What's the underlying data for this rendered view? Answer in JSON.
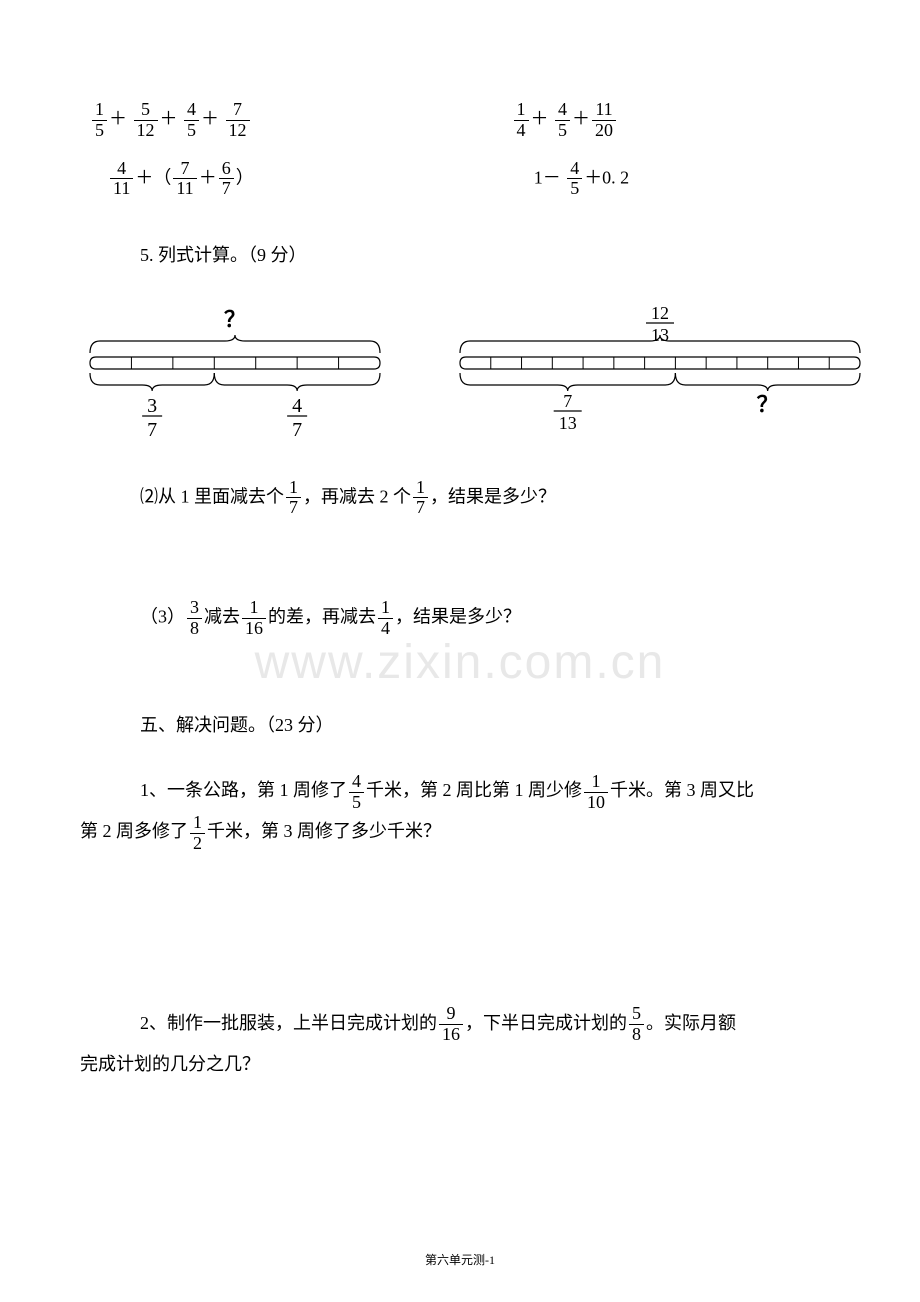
{
  "expr_row1_left": {
    "t1": {
      "n": "1",
      "d": "5"
    },
    "t2": {
      "n": "5",
      "d": "12"
    },
    "t3": {
      "n": "4",
      "d": "5"
    },
    "t4": {
      "n": "7",
      "d": "12"
    }
  },
  "expr_row1_right": {
    "t1": {
      "n": "1",
      "d": "4"
    },
    "t2": {
      "n": "4",
      "d": "5"
    },
    "t3": {
      "n": "11",
      "d": "20"
    }
  },
  "expr_row2_left": {
    "t1": {
      "n": "4",
      "d": "11"
    },
    "t2": {
      "n": "7",
      "d": "11"
    },
    "t3": {
      "n": "6",
      "d": "7"
    }
  },
  "expr_row2_right": {
    "lead": "1－ ",
    "f": {
      "n": "4",
      "d": "5"
    },
    "tail": "＋0. 2"
  },
  "q5": {
    "heading": "5. 列式计算。（9 分）",
    "diagram1": {
      "top_q": "？",
      "left": {
        "n": "3",
        "d": "7"
      },
      "right": {
        "n": "4",
        "d": "7"
      },
      "ticks_left": 3,
      "ticks_right": 4,
      "color": "#000000"
    },
    "diagram2": {
      "top_frac": {
        "n": "12",
        "d": "13"
      },
      "bottom_left": {
        "n": "7",
        "d": "13"
      },
      "bottom_q": "？",
      "cells": 13,
      "color": "#000000"
    }
  },
  "q2": {
    "pre": "⑵从 1 里面减去个",
    "f1": {
      "n": "1",
      "d": "7"
    },
    "mid": "，再减去 2 个",
    "f2": {
      "n": "1",
      "d": "7"
    },
    "post": "，结果是多少？"
  },
  "q3": {
    "pre": "（3）",
    "f1": {
      "n": "3",
      "d": "8"
    },
    "mid1": "减去",
    "f2": {
      "n": "1",
      "d": "16"
    },
    "mid2": "的差，再减去",
    "f3": {
      "n": "1",
      "d": "4"
    },
    "post": "，结果是多少？"
  },
  "sec5_heading": "五、解决问题。（23 分）",
  "p1": {
    "a": "1、一条公路，第 1 周修了",
    "f1": {
      "n": "4",
      "d": "5"
    },
    "b": "千米，第 2 周比第 1 周少修",
    "f2": {
      "n": "1",
      "d": "10"
    },
    "c": "千米。第 3 周又比",
    "d": "第 2 周多修了",
    "f3": {
      "n": "1",
      "d": "2"
    },
    "e": "千米，第 3 周修了多少千米？"
  },
  "p2": {
    "a": "2、制作一批服装，上半日完成计划的",
    "f1": {
      "n": "9",
      "d": "16"
    },
    "b": "，下半日完成计划的",
    "f2": {
      "n": "5",
      "d": "8"
    },
    "c": "。实际月额",
    "d": "完成计划的几分之几？"
  },
  "watermark": "www.zixin.com.cn",
  "footer": "第六单元测-1"
}
